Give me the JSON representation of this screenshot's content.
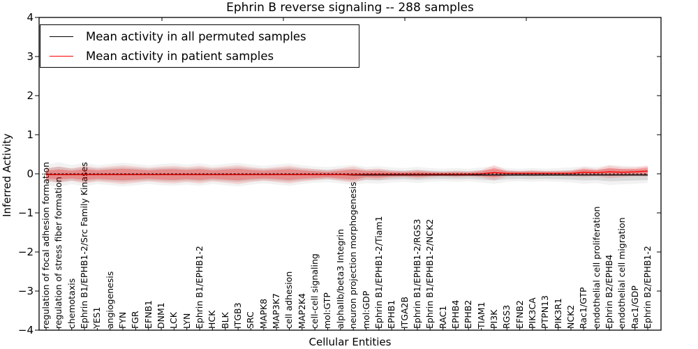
{
  "title": "Ephrin B reverse signaling -- 288 samples",
  "axes": {
    "ylabel": "Inferred Activity",
    "xlabel": "Cellular Entities",
    "yticks": [
      "4",
      "3",
      "2",
      "1",
      "0",
      "−1",
      "−2",
      "−3",
      "−4"
    ]
  },
  "legend": {
    "entries": [
      {
        "label": "Mean activity in all permuted samples",
        "color": "#000000"
      },
      {
        "label": "Mean activity in patient samples",
        "color": "#ff0000"
      }
    ]
  },
  "chart_data": {
    "type": "line",
    "title": "Ephrin B reverse signaling -- 288 samples",
    "xlabel": "Cellular Entities",
    "ylabel": "Inferred Activity",
    "ylim": [
      -4,
      4
    ],
    "grid": false,
    "legend_position": "upper left",
    "categories": [
      "regulation of focal adhesion formation",
      "regulation of stress fiber formation",
      "chemotaxis",
      "Ephrin B1/EPHB1-2/Src Family Kinases",
      "YES1",
      "angiogenesis",
      "FYN",
      "FGR",
      "EFNB1",
      "DNM1",
      "LCK",
      "LYN",
      "Ephrin B1/EPHB1-2",
      "HCK",
      "BLK",
      "ITGB3",
      "SRC",
      "MAPK8",
      "MAP3K7",
      "cell adhesion",
      "MAP2K4",
      "cell-cell signaling",
      "mol:GTP",
      "alphaIIb/beta3 Integrin",
      "neuron projection morphogenesis",
      "mol:GDP",
      "Ephrin B1/EPHB1-2/Tiam1",
      "EPHB1",
      "ITGA2B",
      "Ephrin B1/EPHB1-2/RGS3",
      "Ephrin B1/EPHB1-2/NCK2",
      "RAC1",
      "EPHB4",
      "EPHB2",
      "TIAM1",
      "PI3K",
      "RGS3",
      "EFNB2",
      "PIK3CA",
      "PTPN13",
      "PIK3R1",
      "NCK2",
      "Rac1/GTP",
      "endothelial cell proliferation",
      "Ephrin B2/EPHB4",
      "endothelial cell migration",
      "Rac1/GDP",
      "Ephrin B2/EPHB1-2"
    ],
    "series": [
      {
        "name": "Mean activity in all permuted samples",
        "color": "#000000",
        "style": "solid",
        "values": [
          -0.02,
          -0.02,
          -0.02,
          -0.02,
          -0.02,
          -0.02,
          -0.02,
          -0.02,
          -0.02,
          -0.02,
          -0.02,
          -0.02,
          -0.02,
          -0.02,
          -0.02,
          -0.02,
          -0.02,
          -0.02,
          -0.02,
          -0.02,
          -0.02,
          -0.02,
          -0.02,
          -0.02,
          -0.03,
          -0.03,
          -0.03,
          -0.03,
          -0.03,
          -0.03,
          -0.03,
          -0.03,
          -0.03,
          -0.03,
          -0.03,
          -0.03,
          -0.03,
          -0.03,
          -0.03,
          -0.03,
          -0.03,
          -0.03,
          -0.03,
          -0.03,
          -0.03,
          -0.03,
          -0.03,
          -0.03
        ]
      },
      {
        "name": "Mean activity in patient samples",
        "color": "#ff0000",
        "style": "solid",
        "values": [
          -0.02,
          -0.02,
          -0.02,
          -0.02,
          -0.02,
          -0.02,
          -0.02,
          -0.02,
          -0.02,
          -0.02,
          -0.02,
          -0.02,
          -0.02,
          -0.02,
          -0.02,
          -0.02,
          -0.02,
          -0.02,
          -0.02,
          -0.02,
          -0.02,
          -0.02,
          -0.02,
          -0.02,
          -0.02,
          -0.01,
          -0.01,
          -0.01,
          -0.01,
          -0.01,
          -0.01,
          -0.01,
          -0.01,
          -0.01,
          0.0,
          0.03,
          0.01,
          0.01,
          0.01,
          0.01,
          0.01,
          0.01,
          0.04,
          0.03,
          0.05,
          0.04,
          0.05,
          0.07
        ]
      },
      {
        "name": "zero-reference-line",
        "color": "#000000",
        "style": "dashed",
        "constant_value": 0
      }
    ],
    "bands": [
      {
        "name": "permuted-samples-range",
        "color": "#000000",
        "opacity": 0.1,
        "center_series": 0,
        "half_widths": [
          0.16,
          0.2,
          0.15,
          0.19,
          0.15,
          0.17,
          0.19,
          0.17,
          0.15,
          0.17,
          0.18,
          0.16,
          0.18,
          0.15,
          0.17,
          0.19,
          0.16,
          0.14,
          0.16,
          0.18,
          0.15,
          0.13,
          0.12,
          0.14,
          0.16,
          0.13,
          0.14,
          0.12,
          0.11,
          0.13,
          0.11,
          0.1,
          0.11,
          0.1,
          0.12,
          0.14,
          0.11,
          0.1,
          0.11,
          0.1,
          0.11,
          0.12,
          0.14,
          0.13,
          0.16,
          0.15,
          0.14,
          0.13
        ]
      },
      {
        "name": "patient-samples-range",
        "color": "#ff0000",
        "opacity": 0.26,
        "center_series": 1,
        "half_widths": [
          0.1,
          0.13,
          0.1,
          0.14,
          0.11,
          0.13,
          0.15,
          0.13,
          0.11,
          0.13,
          0.14,
          0.12,
          0.14,
          0.11,
          0.13,
          0.15,
          0.12,
          0.1,
          0.12,
          0.14,
          0.11,
          0.09,
          0.07,
          0.1,
          0.13,
          0.08,
          0.09,
          0.06,
          0.05,
          0.07,
          0.05,
          0.04,
          0.05,
          0.04,
          0.06,
          0.12,
          0.05,
          0.04,
          0.05,
          0.04,
          0.04,
          0.05,
          0.08,
          0.06,
          0.1,
          0.08,
          0.07,
          0.09
        ]
      }
    ]
  },
  "colors": {
    "permuted_line": "#000000",
    "patient_line": "#ff0000",
    "axis": "#000000",
    "background": "#ffffff"
  }
}
